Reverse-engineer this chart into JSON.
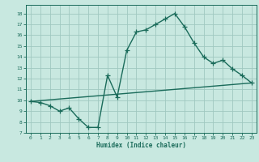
{
  "title": "",
  "xlabel": "Humidex (Indice chaleur)",
  "ylabel": "",
  "xlim": [
    -0.5,
    23.5
  ],
  "ylim": [
    7,
    18.8
  ],
  "yticks": [
    7,
    8,
    9,
    10,
    11,
    12,
    13,
    14,
    15,
    16,
    17,
    18
  ],
  "xticks": [
    0,
    1,
    2,
    3,
    4,
    5,
    6,
    7,
    8,
    9,
    10,
    11,
    12,
    13,
    14,
    15,
    16,
    17,
    18,
    19,
    20,
    21,
    22,
    23
  ],
  "background_color": "#c8e8e0",
  "grid_color": "#a0c8c0",
  "line_color": "#1a6b5a",
  "line1_x": [
    0,
    1,
    2,
    3,
    4,
    5,
    6,
    7,
    8,
    9,
    10,
    11,
    12,
    13,
    14,
    15,
    16,
    17,
    18,
    19,
    20,
    21,
    22,
    23
  ],
  "line1_y": [
    9.9,
    9.8,
    9.5,
    9.0,
    9.3,
    8.3,
    7.5,
    7.5,
    12.3,
    10.3,
    14.6,
    16.3,
    16.5,
    17.0,
    17.5,
    18.0,
    16.8,
    15.3,
    14.0,
    13.4,
    13.7,
    12.9,
    12.3,
    11.6
  ],
  "line2_x": [
    0,
    23
  ],
  "line2_y": [
    9.9,
    11.6
  ],
  "marker": "+",
  "markersize": 4,
  "markeredgewidth": 0.9,
  "linewidth": 1.0
}
